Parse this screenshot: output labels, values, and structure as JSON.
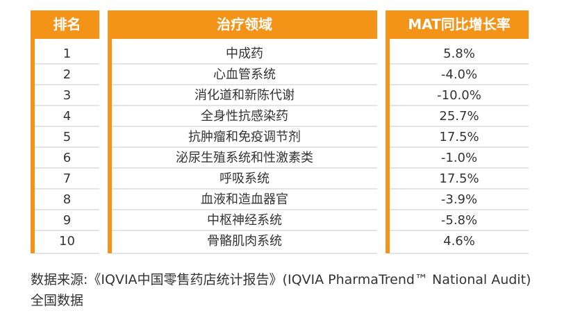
{
  "table": {
    "header": [
      "排名",
      "治疗领域",
      "MAT同比增长率"
    ],
    "rows": [
      [
        "1",
        "中成药",
        "5.8%"
      ],
      [
        "2",
        "心血管系统",
        "-4.0%"
      ],
      [
        "3",
        "消化道和新陈代谢",
        "-10.0%"
      ],
      [
        "4",
        "全身性抗感染药",
        "25.7%"
      ],
      [
        "5",
        "抗肿瘤和免疫调节剂",
        "17.5%"
      ],
      [
        "6",
        "泌尿生殖系统和性激素类",
        "-1.0%"
      ],
      [
        "7",
        "呼吸系统",
        "17.5%"
      ],
      [
        "8",
        "血液和造血器官",
        "-3.9%"
      ],
      [
        "9",
        "中枢神经系统",
        "-5.8%"
      ],
      [
        "10",
        "骨骼肌肉系统",
        "4.6%"
      ]
    ]
  },
  "footnote": "数据来源:《IQVIA中国零售药店统计报告》(IQVIA PharmaTrend™ National Audit)全国数据"
}
